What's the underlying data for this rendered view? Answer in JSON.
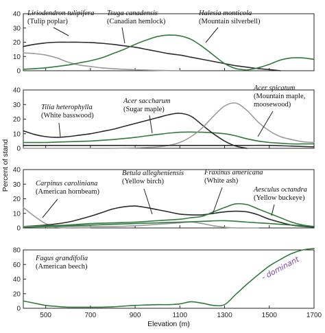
{
  "chart_data": {
    "type": "line",
    "xlabel": "Elevation (m)",
    "ylabel": "Percent of stand",
    "xlim": [
      400,
      1700
    ],
    "xticks": [
      500,
      700,
      900,
      1100,
      1300,
      1500,
      1700
    ],
    "colors": {
      "black": "#2a2a2a",
      "green": "#2f7a3a",
      "gray": "#9a9a9a",
      "handwriting": "#7b3fa6"
    },
    "panels": [
      {
        "ylim": [
          0,
          40
        ],
        "yticks": [
          0,
          10,
          20,
          30,
          40
        ],
        "series": [
          {
            "name": "Liriodendron tulipifera",
            "common": "(Tulip poplar)",
            "color": "gray",
            "x": [
              400,
              450,
              500,
              550,
              600,
              650,
              700,
              750,
              800,
              850,
              900,
              950,
              1000,
              1050,
              1100
            ],
            "y": [
              12.5,
              12,
              11,
              9,
              6,
              4,
              3,
              2,
              1.5,
              1,
              0.7,
              0.5,
              0.3,
              0.1,
              0
            ]
          },
          {
            "name": "Tsuga canadensis",
            "common": "(Canadian hemlock)",
            "color": "black",
            "x": [
              400,
              450,
              500,
              550,
              600,
              650,
              700,
              750,
              800,
              850,
              900,
              950,
              1000,
              1050,
              1100,
              1150,
              1200,
              1250,
              1300,
              1350,
              1400,
              1450,
              1500,
              1550
            ],
            "y": [
              17,
              18.5,
              19.5,
              20,
              20,
              20,
              19.8,
              19.3,
              18.5,
              17.5,
              16.5,
              15,
              13.5,
              12,
              11,
              9.5,
              8,
              6.5,
              5,
              3.5,
              2.5,
              1.5,
              0.8,
              0
            ]
          },
          {
            "name": "Halesia monticola",
            "common": "(Mountain silverbell)",
            "color": "green",
            "x": [
              400,
              450,
              500,
              550,
              600,
              650,
              700,
              750,
              800,
              850,
              900,
              950,
              1000,
              1050,
              1100,
              1150,
              1200,
              1250,
              1300,
              1350,
              1400
            ],
            "y": [
              1,
              1.5,
              2,
              3,
              4,
              5.5,
              7,
              9,
              12,
              15,
              18.5,
              21.5,
              24,
              25,
              24.5,
              22,
              17,
              11,
              5,
              1.5,
              0.5
            ]
          },
          {
            "name": "",
            "common": "",
            "color": "green",
            "x": [
              1400,
              1450,
              1500,
              1550,
              1600,
              1650,
              1700
            ],
            "y": [
              0.5,
              2,
              4.5,
              7.5,
              9,
              9,
              8
            ]
          }
        ]
      },
      {
        "ylim": [
          0,
          40
        ],
        "yticks": [
          0,
          10,
          20,
          30,
          40
        ],
        "series": [
          {
            "name": "Tilia heterophylla",
            "common": "(White basswood)",
            "color": "green",
            "x": [
              400,
              500,
              600,
              700,
              800,
              900,
              1000,
              1100,
              1200,
              1300,
              1350,
              1400,
              1450,
              1500,
              1550,
              1600,
              1650,
              1700
            ],
            "y": [
              4,
              4,
              4.5,
              5,
              6,
              7.5,
              9.5,
              11,
              11,
              10,
              8.5,
              6.5,
              5,
              4,
              3.5,
              3,
              3,
              3
            ]
          },
          {
            "name": "Acer saccharum",
            "common": "(Sugar maple)",
            "color": "black",
            "x": [
              400,
              450,
              500,
              550,
              600,
              650,
              700,
              750,
              800,
              850,
              900,
              950,
              1000,
              1050,
              1100,
              1150,
              1200,
              1250,
              1300,
              1350,
              1400
            ],
            "y": [
              12,
              9.5,
              8,
              7.5,
              8,
              9,
              10,
              11.5,
              13,
              15,
              17,
              19,
              21,
              23,
              24,
              22,
              16,
              10,
              5,
              1.5,
              0
            ]
          },
          {
            "name": "Acer spicatum",
            "common": "(Mountain maple, moosewood)",
            "color": "gray",
            "x": [
              400,
              500,
              600,
              700,
              800,
              900,
              1000,
              1050,
              1100,
              1150,
              1200,
              1250,
              1300,
              1350,
              1400,
              1450,
              1500,
              1550,
              1600,
              1650,
              1700
            ],
            "y": [
              0,
              0,
              0,
              0,
              0,
              0.3,
              1,
              2,
              4,
              8,
              14,
              22,
              29,
              31,
              26,
              18,
              12,
              8,
              6,
              4.5,
              4
            ]
          },
          {
            "name": "",
            "common": "",
            "color": "black",
            "x": [
              400,
              500,
              600,
              700,
              800,
              900,
              1000,
              1100,
              1200,
              1300,
              1400,
              1500,
              1600,
              1700
            ],
            "y": [
              2,
              2,
              2,
              2,
              2,
              2,
              2,
              2,
              2,
              2,
              2,
              2,
              1.5,
              1
            ]
          }
        ]
      },
      {
        "ylim": [
          0,
          40
        ],
        "yticks": [
          0,
          10,
          20,
          30,
          40
        ],
        "series": [
          {
            "name": "Carpinus caroliniana",
            "common": "(American hornbeam)",
            "color": "gray",
            "x": [
              400,
              450,
              500,
              550,
              600,
              650,
              700
            ],
            "y": [
              14,
              8,
              3,
              0.5,
              0,
              0,
              0
            ]
          },
          {
            "name": "Betula allegheniensis",
            "common": "(Yellow birch)",
            "color": "black",
            "x": [
              400,
              500,
              600,
              700,
              750,
              800,
              850,
              900,
              950,
              1000,
              1050,
              1100,
              1150,
              1200,
              1250,
              1300,
              1350,
              1400,
              1450,
              1500,
              1600,
              1700
            ],
            "y": [
              1,
              2,
              4,
              8,
              10.5,
              13,
              14.5,
              15,
              14,
              12.5,
              11,
              9.5,
              9,
              9,
              10,
              11,
              11.5,
              11,
              9,
              6,
              2,
              0.5
            ]
          },
          {
            "name": "Fraxinus americana",
            "common": "(White ash)",
            "color": "green",
            "x": [
              400,
              500,
              600,
              700,
              800,
              900,
              1000,
              1100,
              1150,
              1200,
              1250,
              1300,
              1350,
              1400,
              1450,
              1500,
              1550,
              1600,
              1650,
              1700
            ],
            "y": [
              1,
              1.5,
              2,
              3,
              3.5,
              4,
              5,
              6,
              7,
              8,
              11,
              14,
              16.5,
              16,
              13,
              10,
              7,
              4,
              2,
              1
            ]
          },
          {
            "name": "Aesculus octandra",
            "common": "(Yellow buckeye)",
            "color": "gray",
            "x": [
              400,
              500,
              600,
              700,
              800,
              900,
              1000,
              1050,
              1100,
              1150,
              1200,
              1250,
              1300,
              1350,
              1400,
              1450
            ],
            "y": [
              1,
              1,
              1,
              1,
              1,
              1.5,
              2.5,
              3,
              3.5,
              4,
              3,
              1.5,
              0.5,
              0,
              0,
              0
            ]
          },
          {
            "name": "",
            "common": "",
            "color": "green",
            "x": [
              400,
              500,
              600,
              700,
              800,
              900,
              1000,
              1100,
              1200,
              1300,
              1400,
              1500,
              1600,
              1700
            ],
            "y": [
              0.5,
              1,
              1.5,
              2,
              2.5,
              3,
              3.5,
              4,
              4.5,
              5,
              4,
              3,
              2,
              1
            ]
          }
        ]
      },
      {
        "ylim": [
          0,
          80
        ],
        "yticks": [
          0,
          20,
          40,
          60,
          80
        ],
        "series": [
          {
            "name": "Fagus grandifolia",
            "common": "(American beech)",
            "color": "green",
            "x": [
              400,
              450,
              500,
              550,
              600,
              650,
              700,
              750,
              800,
              850,
              900,
              950,
              1000,
              1050,
              1100,
              1150,
              1200,
              1250,
              1300,
              1350,
              1400,
              1450,
              1500,
              1550,
              1600,
              1650,
              1700
            ],
            "y": [
              10,
              7,
              4,
              2.5,
              1.5,
              1.5,
              1.5,
              1.5,
              2,
              3,
              4,
              4.5,
              5,
              5,
              6,
              9,
              7,
              4,
              5,
              19,
              33,
              46,
              58,
              67,
              75,
              80,
              82
            ]
          }
        ]
      }
    ],
    "annotations": [
      {
        "panel": 0,
        "latin": "Liriodendron tulipifera",
        "common": "(Tulip poplar)"
      },
      {
        "panel": 0,
        "latin": "Tsuga canadensis",
        "common": "(Canadian hemlock)"
      },
      {
        "panel": 0,
        "latin": "Halesia monticola",
        "common": "(Mountain silverbell)"
      },
      {
        "panel": 1,
        "latin": "Tilia heterophylla",
        "common": "(White basswood)"
      },
      {
        "panel": 1,
        "latin": "Acer saccharum",
        "common": "(Sugar maple)"
      },
      {
        "panel": 1,
        "latin": "Acer spicatum",
        "common": "(Mountain maple,",
        "common2": "moosewood)"
      },
      {
        "panel": 2,
        "latin": "Carpinus caroliniana",
        "common": "(American hornbeam)"
      },
      {
        "panel": 2,
        "latin": "Betula allegheniensis",
        "common": "(Yellow birch)"
      },
      {
        "panel": 2,
        "latin": "Fraxinus americana",
        "common": "(White ash)"
      },
      {
        "panel": 2,
        "latin": "Aesculus octandra",
        "common": "(Yellow buckeye)"
      },
      {
        "panel": 3,
        "latin": "Fagus grandifolia",
        "common": "(American beech)"
      }
    ],
    "handwritten_note": "- dominant"
  }
}
